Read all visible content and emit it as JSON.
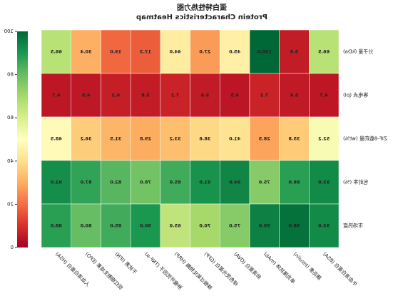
{
  "chart_data": {
    "type": "heatmap",
    "title": "蛋白特性热力图",
    "subtitle": "Protein Characteristics Heatmap",
    "categories": [
      "牛血清白蛋白 (BSA)",
      "胰岛素 (Insulin)",
      "单克隆抗体 (mAb)",
      "卵清蛋白 (OVA)",
      "绿色荧光蛋白 (GFP)",
      "辣根过氧化物酶 (HRP)",
      "肿瘤坏死因子 (TNF-α)",
      "干扰素 (IFN)",
      "促红细胞生成素 (EPO)",
      "人血清白蛋白 (HSA)"
    ],
    "rows": [
      "分子量 (kDa)",
      "等电点 (pI)",
      "ZIF-8载药量 (wt%)",
      "包封率 (%)",
      "市场热度"
    ],
    "values": [
      [
        66.5,
        5.8,
        150.0,
        45.0,
        27.0,
        44.0,
        17.3,
        19.0,
        30.4,
        66.5
      ],
      [
        4.7,
        5.4,
        7.2,
        4.5,
        5.6,
        7.2,
        5.8,
        6.2,
        4.9,
        4.7
      ],
      [
        52.2,
        35.8,
        28.5,
        41.0,
        38.6,
        33.2,
        29.8,
        31.5,
        36.2,
        48.5
      ],
      [
        93,
        88,
        75,
        94,
        91,
        85,
        78,
        82,
        87,
        92
      ],
      [
        93,
        98,
        95,
        75,
        70,
        65,
        90,
        85,
        80,
        88
      ]
    ],
    "value_labels": [
      [
        "66.5",
        "5.8",
        "150.0",
        "45.0",
        "27.0",
        "44.0",
        "17.3",
        "19.0",
        "30.4",
        "66.5"
      ],
      [
        "4.7",
        "5.4",
        "7.2",
        "4.5",
        "5.6",
        "7.2",
        "5.8",
        "6.2",
        "4.9",
        "4.7"
      ],
      [
        "52.2",
        "35.8",
        "28.5",
        "41.0",
        "38.6",
        "33.2",
        "29.8",
        "31.5",
        "36.2",
        "48.5"
      ],
      [
        "93.0",
        "88.0",
        "75.0",
        "94.0",
        "91.0",
        "85.0",
        "78.0",
        "82.0",
        "87.0",
        "92.0"
      ],
      [
        "93.0",
        "98.0",
        "95.0",
        "75.0",
        "70.0",
        "65.0",
        "90.0",
        "85.0",
        "80.0",
        "88.0"
      ]
    ],
    "colormap": "RdYlGn",
    "clim": [
      0,
      100
    ],
    "cticks": [
      0,
      20,
      40,
      60,
      80,
      100
    ]
  }
}
